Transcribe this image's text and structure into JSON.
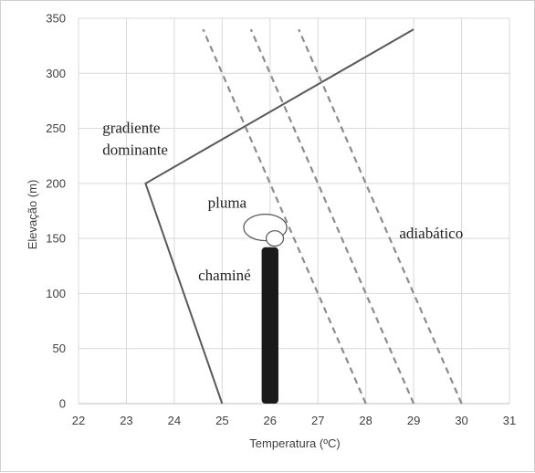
{
  "chart_data": {
    "type": "line",
    "xlabel": "Temperatura (ºC)",
    "ylabel": "Elevação (m)",
    "xlim": [
      22,
      31
    ],
    "ylim": [
      0,
      350
    ],
    "xticks": [
      22,
      23,
      24,
      25,
      26,
      27,
      28,
      29,
      30,
      31
    ],
    "yticks": [
      0,
      50,
      100,
      150,
      200,
      250,
      300,
      350
    ],
    "grid": true,
    "colors": {
      "gridline": "#d9d9d9",
      "axis": "#bfbfbf",
      "prevailing": "#595959",
      "adiabatic": "#8c8c8c",
      "stack": "#1a1a1a",
      "plume_outline": "#555555"
    },
    "series": [
      {
        "role": "prevailing",
        "style": "solid",
        "points": [
          [
            25.0,
            0
          ],
          [
            23.4,
            200
          ],
          [
            29.0,
            340
          ]
        ]
      },
      {
        "role": "adiabatic",
        "style": "dashed",
        "points": [
          [
            28.0,
            0
          ],
          [
            24.6,
            340
          ]
        ]
      },
      {
        "role": "adiabatic",
        "style": "dashed",
        "points": [
          [
            29.0,
            0
          ],
          [
            25.6,
            340
          ]
        ]
      },
      {
        "role": "adiabatic",
        "style": "dashed",
        "points": [
          [
            30.0,
            0
          ],
          [
            26.6,
            340
          ]
        ]
      }
    ],
    "stack": {
      "x_center": 26.0,
      "width": 0.35,
      "height": 142
    },
    "plume": [
      {
        "x": 25.9,
        "y": 160,
        "rx": 0.45,
        "ry": 12
      },
      {
        "x": 26.1,
        "y": 150,
        "rx": 0.18,
        "ry": 7
      }
    ],
    "annotations": [
      {
        "text": "gradiente",
        "x": 22.5,
        "y": 246
      },
      {
        "text": "dominante",
        "x": 22.5,
        "y": 226
      },
      {
        "text": "pluma",
        "x": 24.7,
        "y": 178
      },
      {
        "text": "chaminé",
        "x": 24.5,
        "y": 112
      },
      {
        "text": "adiabático",
        "x": 28.7,
        "y": 150
      }
    ]
  }
}
